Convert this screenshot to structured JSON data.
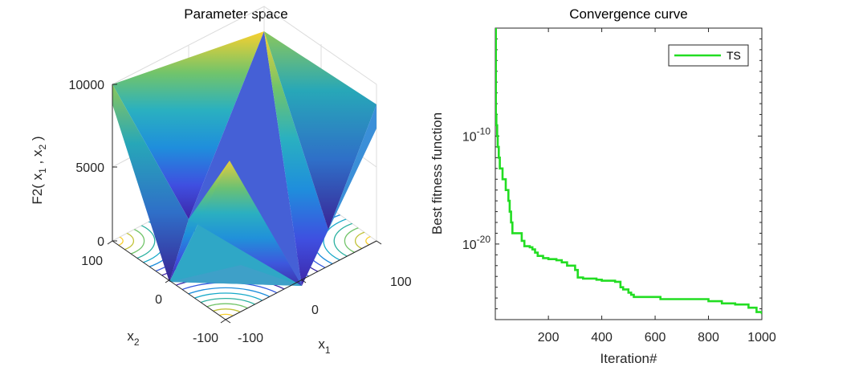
{
  "colors": {
    "surface_low": "#3e26a8",
    "surface_mid": "#2ab0c0",
    "surface_high": "#f9d02e",
    "convergence_line": "#22dd22"
  },
  "chart_data": [
    {
      "type": "surface3d",
      "title": "Parameter space",
      "function_name": "F2",
      "x1": [
        -100,
        -50,
        0,
        50,
        100
      ],
      "x2": [
        -100,
        -50,
        0,
        50,
        100
      ],
      "z": [
        [
          10000,
          7500,
          10000,
          7500,
          10000
        ],
        [
          7500,
          5000,
          2500,
          5000,
          7500
        ],
        [
          10000,
          2500,
          0,
          2500,
          10000
        ],
        [
          7500,
          5000,
          2500,
          5000,
          7500
        ],
        [
          10000,
          7500,
          10000,
          7500,
          10000
        ]
      ],
      "zlabel": "F2( x1 , x2 )",
      "zlabel_parts": {
        "f": "F2( x",
        "s1": "1",
        "mid": " , x",
        "s2": "2",
        "end": " )"
      },
      "xlabel": {
        "base": "x",
        "sub": "1"
      },
      "ylabel": {
        "base": "x",
        "sub": "2"
      },
      "zticks": [
        "10000",
        "5000",
        "0"
      ],
      "x1ticks": [
        "100",
        "0",
        "-100"
      ],
      "x2ticks": [
        "100",
        "0",
        "-100"
      ],
      "zlim": [
        0,
        10000
      ],
      "contours_on_floor": true
    },
    {
      "type": "line",
      "title": "Convergence curve",
      "xlabel": "Iteration#",
      "ylabel": "Best fitness function",
      "yscale": "log",
      "xlim": [
        1,
        1000
      ],
      "ylim_exp": [
        -27,
        0
      ],
      "xticks": [
        "200",
        "400",
        "600",
        "800",
        "1000"
      ],
      "yticks": [
        {
          "base": "10",
          "exp": "-10"
        },
        {
          "base": "10",
          "exp": "-20"
        }
      ],
      "series": [
        {
          "name": "TS",
          "x": [
            1,
            3,
            5,
            8,
            10,
            14,
            18,
            22,
            28,
            35,
            40,
            50,
            55,
            60,
            65,
            70,
            100,
            110,
            120,
            130,
            140,
            150,
            160,
            180,
            200,
            230,
            250,
            270,
            300,
            310,
            330,
            380,
            400,
            450,
            470,
            480,
            500,
            510,
            520,
            600,
            620,
            700,
            780,
            800,
            850,
            900,
            950,
            980,
            1000
          ],
          "log10_y": [
            0,
            -8,
            -9,
            -10,
            -11,
            -12,
            -13,
            -13,
            -14,
            -14,
            -15,
            -16,
            -17,
            -18,
            -19,
            -19,
            -19.7,
            -20.2,
            -20.2,
            -20.3,
            -20.5,
            -20.8,
            -21.1,
            -21.3,
            -21.4,
            -21.5,
            -21.7,
            -22,
            -22.4,
            -23.1,
            -23.2,
            -23.3,
            -23.4,
            -23.5,
            -24,
            -24.2,
            -24.5,
            -24.7,
            -24.9,
            -24.9,
            -25.1,
            -25.1,
            -25.1,
            -25.3,
            -25.5,
            -25.6,
            -25.9,
            -26.3,
            -26.5
          ]
        }
      ],
      "legend_position": "top-right"
    }
  ]
}
